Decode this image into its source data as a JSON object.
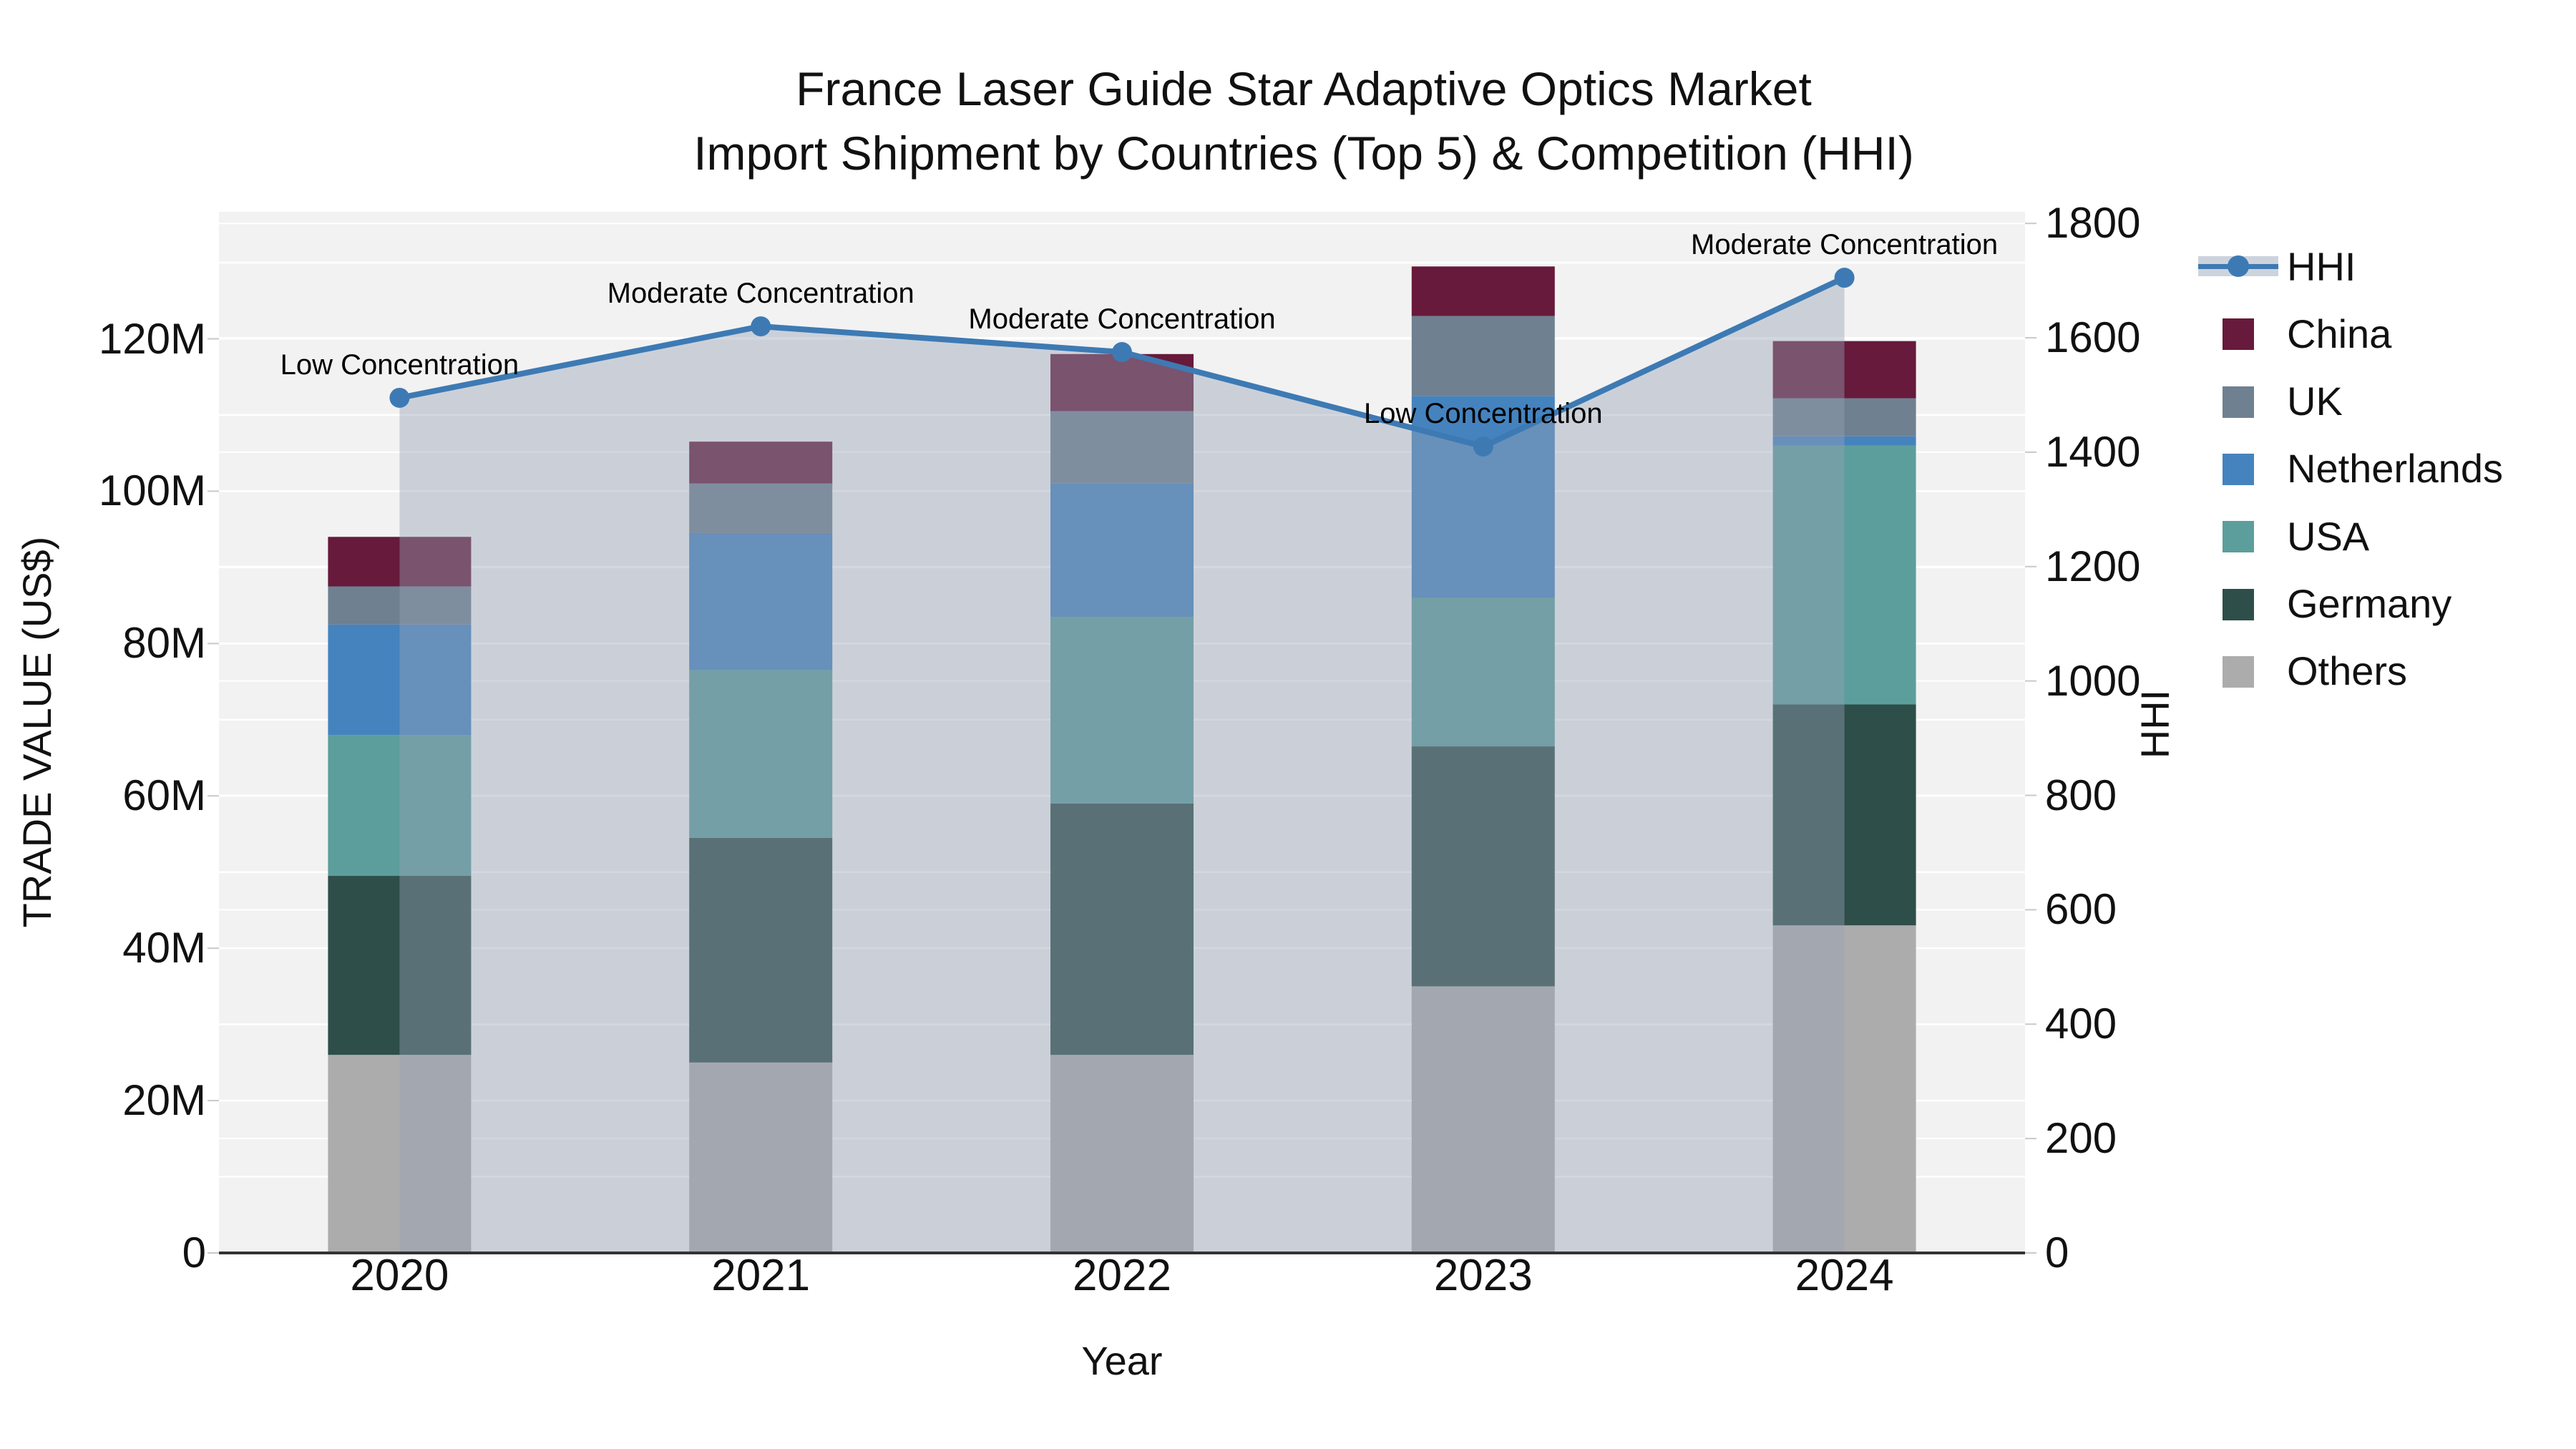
{
  "title": {
    "line1": "France Laser Guide Star Adaptive Optics Market",
    "line2": "Import Shipment by Countries (Top 5) & Competition (HHI)"
  },
  "axes": {
    "left": {
      "title": "TRADE VALUE (US$)",
      "tick_labels": [
        "0",
        "20M",
        "40M",
        "60M",
        "80M",
        "100M",
        "120M"
      ],
      "tick_values": [
        0,
        20,
        40,
        60,
        80,
        100,
        120
      ]
    },
    "right": {
      "title": "HHI",
      "tick_labels": [
        "0",
        "200",
        "400",
        "600",
        "800",
        "1000",
        "1200",
        "1400",
        "1600",
        "1800"
      ],
      "tick_values": [
        0,
        200,
        400,
        600,
        800,
        1000,
        1200,
        1400,
        1600,
        1800
      ]
    },
    "x": {
      "title": "Year"
    }
  },
  "chart_data": {
    "type": "stacked-bar-line",
    "categories": [
      "2020",
      "2021",
      "2022",
      "2023",
      "2024"
    ],
    "unit": "M US$",
    "series": [
      {
        "name": "Others",
        "color": "#ACACAC",
        "values": [
          26,
          25,
          26,
          35,
          43
        ]
      },
      {
        "name": "Germany",
        "color": "#2E4E49",
        "values": [
          23.5,
          29.5,
          33,
          31.5,
          29
        ]
      },
      {
        "name": "USA",
        "color": "#5C9E9B",
        "values": [
          18.5,
          22,
          24.5,
          19.5,
          34
        ]
      },
      {
        "name": "Netherlands",
        "color": "#4583BE",
        "values": [
          14.5,
          18,
          17.5,
          26.5,
          1.2
        ]
      },
      {
        "name": "UK",
        "color": "#6F8090",
        "values": [
          5,
          6.5,
          9.5,
          10.5,
          5
        ]
      },
      {
        "name": "China",
        "color": "#671A3B",
        "values": [
          6.5,
          5.5,
          7.5,
          6.5,
          7.5
        ]
      }
    ],
    "line": {
      "name": "HHI",
      "color": "#3D7AB4",
      "fill_color": "rgba(151,162,180,0.42)",
      "values": [
        1495,
        1620,
        1575,
        1410,
        1705
      ],
      "annotations": [
        "Low Concentration",
        "Moderate Concentration",
        "Moderate Concentration",
        "Low Concentration",
        "Moderate Concentration"
      ]
    },
    "xlabel": "Year",
    "ylabel": "TRADE VALUE (US$)",
    "y2label": "HHI",
    "ylim": [
      0,
      136.8
    ],
    "y2lim": [
      0,
      1820
    ],
    "legend_position": "right",
    "grid": true
  },
  "legend": {
    "items": [
      {
        "label": "HHI",
        "type": "line",
        "color": "#3D7AB4"
      },
      {
        "label": "China",
        "type": "swatch",
        "color": "#671A3B"
      },
      {
        "label": "UK",
        "type": "swatch",
        "color": "#6F8090"
      },
      {
        "label": "Netherlands",
        "type": "swatch",
        "color": "#4583BE"
      },
      {
        "label": "USA",
        "type": "swatch",
        "color": "#5C9E9B"
      },
      {
        "label": "Germany",
        "type": "swatch",
        "color": "#2E4E49"
      },
      {
        "label": "Others",
        "type": "swatch",
        "color": "#ACACAC"
      }
    ]
  }
}
